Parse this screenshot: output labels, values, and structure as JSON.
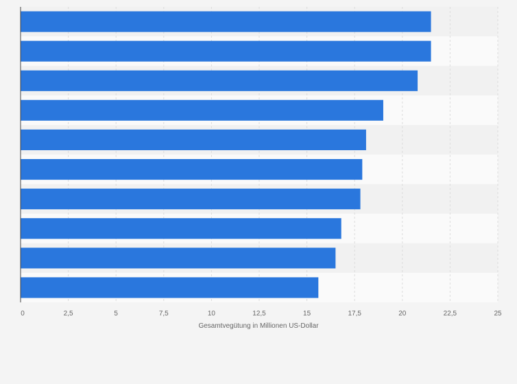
{
  "chart_data": {
    "type": "bar",
    "orientation": "horizontal",
    "categories": [
      "",
      "",
      "",
      "",
      "",
      "",
      "",
      "",
      "",
      ""
    ],
    "values": [
      21.5,
      21.5,
      20.8,
      19.0,
      18.1,
      17.9,
      17.8,
      16.8,
      16.5,
      15.6
    ],
    "xlabel": "Gesamtvegütung in Millionen US-Dollar",
    "ylabel": "",
    "xlim": [
      0,
      25
    ],
    "x_ticks": [
      "0",
      "2,5",
      "5",
      "7,5",
      "10",
      "12,5",
      "15",
      "17,5",
      "20",
      "22,5",
      "25"
    ],
    "grid": true,
    "colors": {
      "bar": "#2a77dd",
      "band_dark": "#f1f1f1",
      "band_light": "#fafafa",
      "grid": "#dcdcdc",
      "axis": "#444444",
      "background": "#f4f4f4"
    }
  }
}
